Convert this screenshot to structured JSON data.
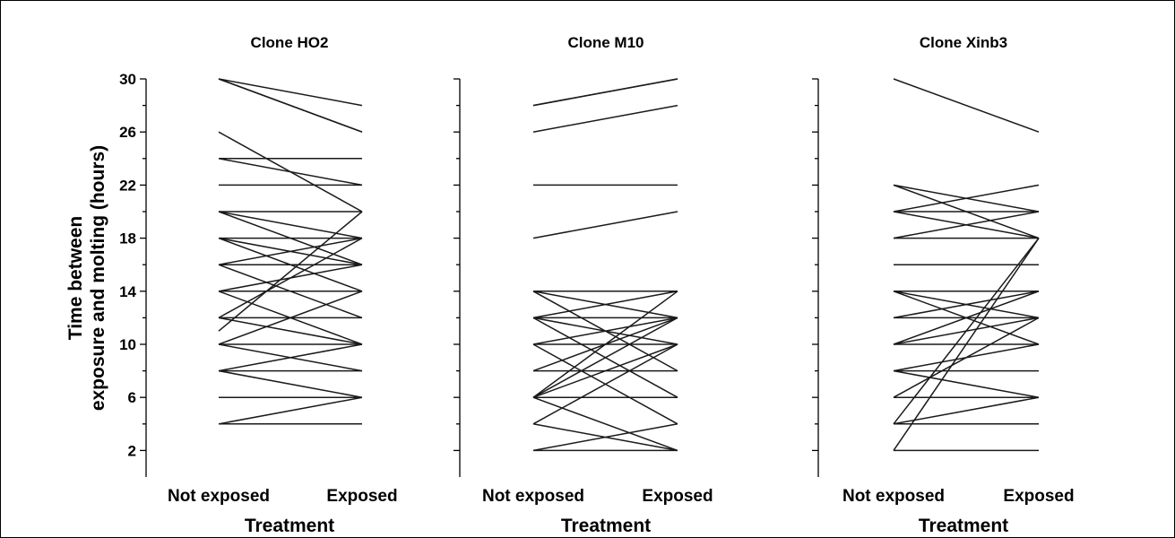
{
  "figure": {
    "ylabel_line1": "Time between",
    "ylabel_line2": "exposure and molting (hours)"
  },
  "chart_data": [
    {
      "type": "line",
      "title": "Clone HO2",
      "xlabel": "Treatment",
      "ylabel": "Time between exposure and molting (hours)",
      "categories": [
        "Not exposed",
        "Exposed"
      ],
      "ylim": [
        0,
        30
      ],
      "yticks": [
        2,
        6,
        10,
        14,
        18,
        22,
        26,
        30
      ],
      "series": [
        {
          "values": [
            30,
            28
          ]
        },
        {
          "values": [
            30,
            26
          ]
        },
        {
          "values": [
            30,
            26
          ]
        },
        {
          "values": [
            26,
            20
          ]
        },
        {
          "values": [
            24,
            24
          ]
        },
        {
          "values": [
            24,
            22
          ]
        },
        {
          "values": [
            22,
            22
          ]
        },
        {
          "values": [
            20,
            20
          ]
        },
        {
          "values": [
            20,
            16
          ]
        },
        {
          "values": [
            20,
            18
          ]
        },
        {
          "values": [
            18,
            18
          ]
        },
        {
          "values": [
            18,
            16
          ]
        },
        {
          "values": [
            18,
            14
          ]
        },
        {
          "values": [
            16,
            16
          ]
        },
        {
          "values": [
            16,
            18
          ]
        },
        {
          "values": [
            16,
            12
          ]
        },
        {
          "values": [
            14,
            14
          ]
        },
        {
          "values": [
            14,
            16
          ]
        },
        {
          "values": [
            14,
            10
          ]
        },
        {
          "values": [
            12,
            12
          ]
        },
        {
          "values": [
            12,
            18
          ]
        },
        {
          "values": [
            12,
            10
          ]
        },
        {
          "values": [
            11,
            20
          ]
        },
        {
          "values": [
            10,
            10
          ]
        },
        {
          "values": [
            10,
            14
          ]
        },
        {
          "values": [
            10,
            8
          ]
        },
        {
          "values": [
            8,
            8
          ]
        },
        {
          "values": [
            8,
            10
          ]
        },
        {
          "values": [
            8,
            6
          ]
        },
        {
          "values": [
            6,
            6
          ]
        },
        {
          "values": [
            4,
            4
          ]
        },
        {
          "values": [
            4,
            6
          ]
        }
      ]
    },
    {
      "type": "line",
      "title": "Clone M10",
      "xlabel": "Treatment",
      "ylabel": "",
      "categories": [
        "Not exposed",
        "Exposed"
      ],
      "ylim": [
        0,
        30
      ],
      "yticks": [
        2,
        6,
        10,
        14,
        18,
        22,
        26,
        30
      ],
      "series": [
        {
          "values": [
            28,
            30
          ]
        },
        {
          "values": [
            28,
            30
          ]
        },
        {
          "values": [
            26,
            28
          ]
        },
        {
          "values": [
            22,
            22
          ]
        },
        {
          "values": [
            18,
            20
          ]
        },
        {
          "values": [
            14,
            14
          ]
        },
        {
          "values": [
            14,
            12
          ]
        },
        {
          "values": [
            14,
            8
          ]
        },
        {
          "values": [
            12,
            12
          ]
        },
        {
          "values": [
            12,
            14
          ]
        },
        {
          "values": [
            12,
            10
          ]
        },
        {
          "values": [
            12,
            6
          ]
        },
        {
          "values": [
            10,
            10
          ]
        },
        {
          "values": [
            10,
            12
          ]
        },
        {
          "values": [
            10,
            4
          ]
        },
        {
          "values": [
            8,
            8
          ]
        },
        {
          "values": [
            8,
            12
          ]
        },
        {
          "values": [
            6,
            6
          ]
        },
        {
          "values": [
            6,
            14
          ]
        },
        {
          "values": [
            6,
            12
          ]
        },
        {
          "values": [
            6,
            10
          ]
        },
        {
          "values": [
            6,
            2
          ]
        },
        {
          "values": [
            4,
            10
          ]
        },
        {
          "values": [
            4,
            2
          ]
        },
        {
          "values": [
            2,
            2
          ]
        },
        {
          "values": [
            2,
            4
          ]
        }
      ]
    },
    {
      "type": "line",
      "title": "Clone Xinb3",
      "xlabel": "Treatment",
      "ylabel": "",
      "categories": [
        "Not exposed",
        "Exposed"
      ],
      "ylim": [
        0,
        30
      ],
      "yticks": [
        2,
        6,
        10,
        14,
        18,
        22,
        26,
        30
      ],
      "series": [
        {
          "values": [
            30,
            26
          ]
        },
        {
          "values": [
            22,
            20
          ]
        },
        {
          "values": [
            22,
            18
          ]
        },
        {
          "values": [
            20,
            20
          ]
        },
        {
          "values": [
            20,
            22
          ]
        },
        {
          "values": [
            20,
            18
          ]
        },
        {
          "values": [
            18,
            18
          ]
        },
        {
          "values": [
            18,
            20
          ]
        },
        {
          "values": [
            16,
            16
          ]
        },
        {
          "values": [
            14,
            14
          ]
        },
        {
          "values": [
            14,
            12
          ]
        },
        {
          "values": [
            14,
            10
          ]
        },
        {
          "values": [
            12,
            12
          ]
        },
        {
          "values": [
            12,
            14
          ]
        },
        {
          "values": [
            10,
            10
          ]
        },
        {
          "values": [
            10,
            12
          ]
        },
        {
          "values": [
            10,
            14
          ]
        },
        {
          "values": [
            8,
            8
          ]
        },
        {
          "values": [
            8,
            6
          ]
        },
        {
          "values": [
            8,
            10
          ]
        },
        {
          "values": [
            6,
            6
          ]
        },
        {
          "values": [
            6,
            12
          ]
        },
        {
          "values": [
            4,
            4
          ]
        },
        {
          "values": [
            4,
            6
          ]
        },
        {
          "values": [
            4,
            18
          ]
        },
        {
          "values": [
            2,
            2
          ]
        },
        {
          "values": [
            2,
            18
          ]
        }
      ]
    }
  ]
}
